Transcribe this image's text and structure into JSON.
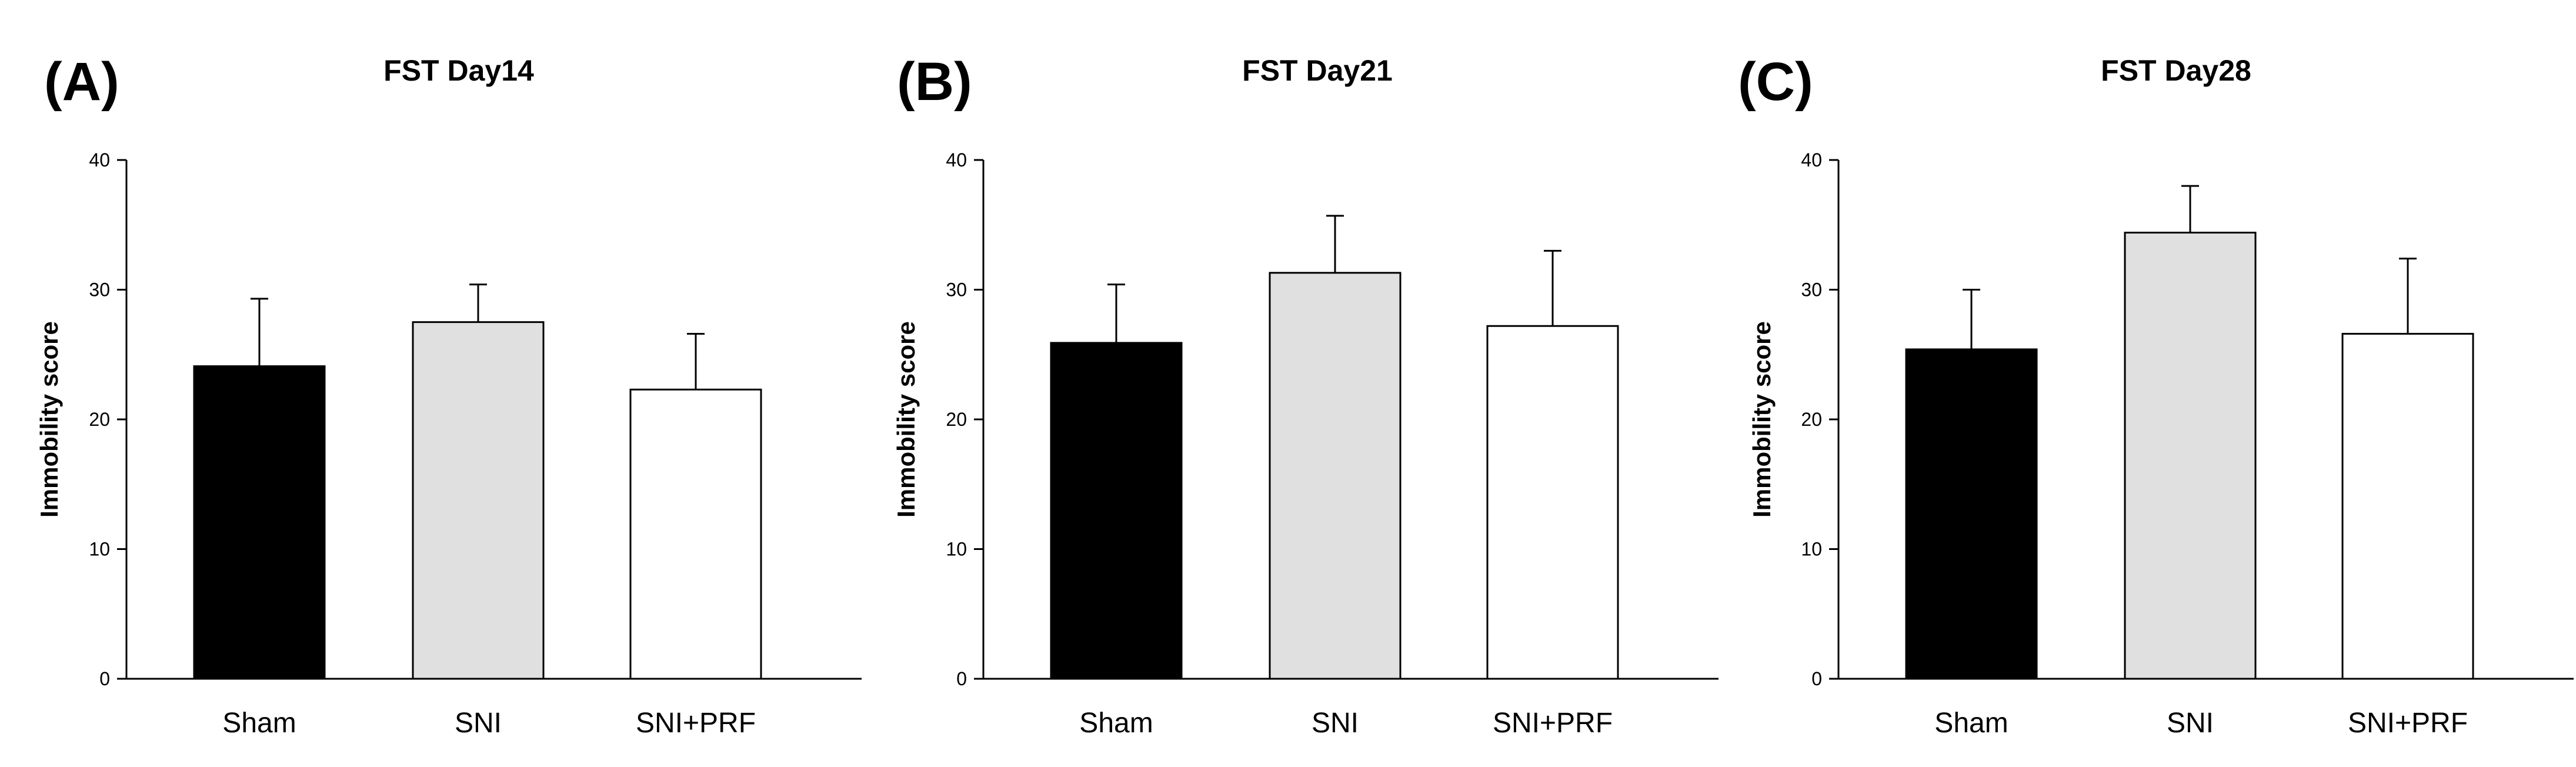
{
  "chart_data": [
    {
      "panel": "(A)",
      "type": "bar",
      "title": "FST Day14",
      "xlabel": "",
      "ylabel": "Immobility score",
      "ylim": [
        0,
        40
      ],
      "yticks": [
        0,
        10,
        20,
        30,
        40
      ],
      "categories": [
        "Sham",
        "SNI",
        "SNI+PRF"
      ],
      "values": [
        24.1,
        27.5,
        22.3
      ],
      "errors": [
        5.2,
        2.9,
        4.3
      ],
      "colors": [
        "#000000",
        "#e0e0e0",
        "#ffffff"
      ],
      "grid": false
    },
    {
      "panel": "(B)",
      "type": "bar",
      "title": "FST Day21",
      "xlabel": "",
      "ylabel": "Immobility score",
      "ylim": [
        0,
        40
      ],
      "yticks": [
        0,
        10,
        20,
        30,
        40
      ],
      "categories": [
        "Sham",
        "SNI",
        "SNI+PRF"
      ],
      "values": [
        25.9,
        31.3,
        27.2
      ],
      "errors": [
        4.5,
        4.4,
        5.8
      ],
      "colors": [
        "#000000",
        "#e0e0e0",
        "#ffffff"
      ],
      "grid": false
    },
    {
      "panel": "(C)",
      "type": "bar",
      "title": "FST Day28",
      "xlabel": "",
      "ylabel": "Immobility score",
      "ylim": [
        0,
        40
      ],
      "yticks": [
        0,
        10,
        20,
        30,
        40
      ],
      "categories": [
        "Sham",
        "SNI",
        "SNI+PRF"
      ],
      "values": [
        25.4,
        34.4,
        26.6
      ],
      "errors": [
        4.6,
        3.6,
        5.8
      ],
      "colors": [
        "#000000",
        "#e0e0e0",
        "#ffffff"
      ],
      "grid": false
    }
  ]
}
